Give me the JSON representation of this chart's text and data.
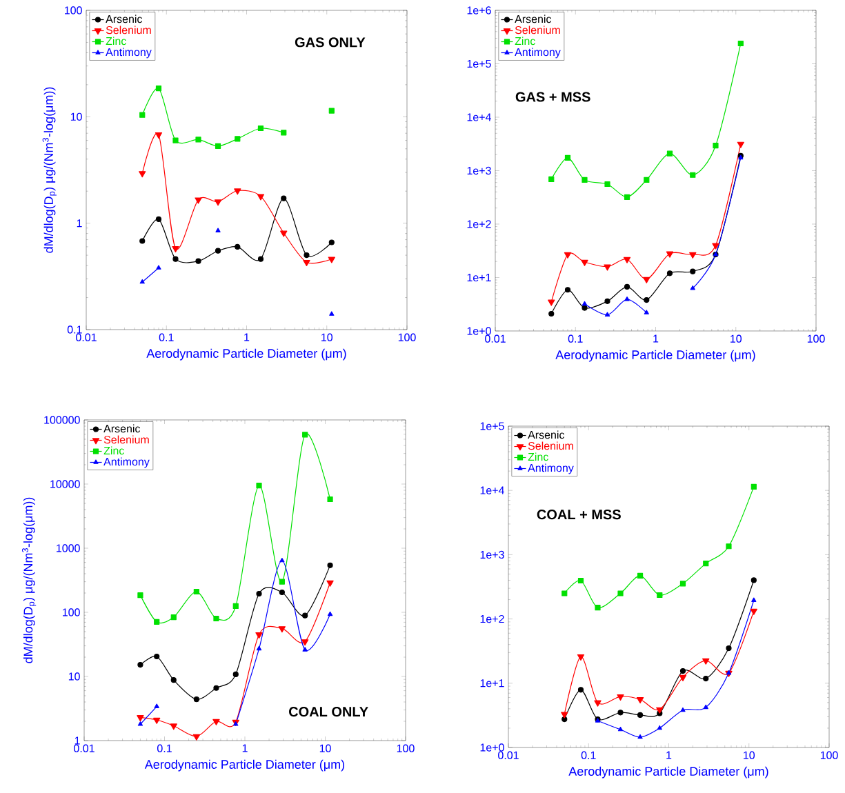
{
  "chart_data": [
    {
      "type": "line",
      "title": "GAS ONLY",
      "xlabel": "Aerodynamic Particle Diameter (μm)",
      "ylabel": "dM/dlog(D$_{p}$) μg/(Nm$^{3}$-log(μm))",
      "log": "xy",
      "legend": "top left",
      "xlim": [
        0.01,
        100
      ],
      "ylim": [
        0.1,
        100
      ],
      "xticks": [
        0.01,
        0.1,
        1,
        10,
        100
      ],
      "yticks": [
        0.1,
        1,
        10,
        100
      ],
      "x": [
        0.05,
        0.08,
        0.13,
        0.25,
        0.44,
        0.77,
        1.5,
        2.9,
        5.6,
        11.5
      ],
      "series": [
        {
          "name": "Arsenic",
          "color": "#000000",
          "marker": "circle",
          "values": [
            0.68,
            1.09,
            0.46,
            0.44,
            0.55,
            0.6,
            0.46,
            1.71,
            0.5,
            0.66
          ]
        },
        {
          "name": "Selenium",
          "color": "#ff0000",
          "marker": "triangle-down",
          "values": [
            2.94,
            6.8,
            0.58,
            1.66,
            1.59,
            2.02,
            1.79,
            0.81,
            0.43,
            0.46
          ]
        },
        {
          "name": "Zinc",
          "color": "#00e000",
          "marker": "square",
          "values": [
            10.4,
            18.5,
            6.0,
            6.1,
            5.3,
            6.2,
            7.8,
            7.1,
            null,
            11.4
          ]
        },
        {
          "name": "Antimony",
          "color": "#0000ff",
          "marker": "triangle",
          "values": [
            0.28,
            0.38,
            null,
            null,
            0.85,
            null,
            null,
            null,
            null,
            0.14
          ]
        }
      ]
    },
    {
      "type": "line",
      "title": "GAS + MSS",
      "xlabel": "Aerodynamic Particle Diameter (μm)",
      "log": "xy",
      "legend": "top left",
      "xlim": [
        0.01,
        100
      ],
      "ylim": [
        1,
        1000000
      ],
      "xticks": [
        0.01,
        0.1,
        1,
        10,
        100
      ],
      "yticks": [
        {
          "value": 1,
          "label": "1e+0"
        },
        {
          "value": 10,
          "label": "1e+1"
        },
        {
          "value": 100,
          "label": "1e+2"
        },
        {
          "value": 1000,
          "label": "1e+3"
        },
        {
          "value": 10000,
          "label": "1e+4"
        },
        {
          "value": 100000,
          "label": "1e+5"
        },
        {
          "value": 1000000,
          "label": "1e+6"
        }
      ],
      "x": [
        0.05,
        0.08,
        0.13,
        0.25,
        0.44,
        0.77,
        1.5,
        2.9,
        5.6,
        11.5
      ],
      "series": [
        {
          "name": "Arsenic",
          "color": "#000000",
          "marker": "circle",
          "values": [
            2.1,
            5.9,
            2.7,
            3.6,
            6.7,
            3.8,
            12,
            13,
            27,
            1900
          ]
        },
        {
          "name": "Selenium",
          "color": "#ff0000",
          "marker": "triangle-down",
          "values": [
            3.5,
            27,
            19.5,
            16,
            22,
            9.3,
            28,
            27,
            40,
            3150
          ]
        },
        {
          "name": "Zinc",
          "color": "#00e000",
          "marker": "square",
          "values": [
            690,
            1740,
            670,
            560,
            320,
            670,
            2090,
            830,
            2950,
            240000
          ]
        },
        {
          "name": "Antimony",
          "color": "#0000ff",
          "marker": "triangle",
          "values": [
            null,
            null,
            3.2,
            2.0,
            3.9,
            2.2,
            null,
            6.3,
            27,
            1740
          ]
        }
      ]
    },
    {
      "type": "line",
      "title": "COAL ONLY",
      "xlabel": "Aerodynamic Particle Diameter (μm)",
      "ylabel": "dM/dlog(D$_{p}$) μg/(Nm$^{3}$-log(μm))",
      "log": "xy",
      "legend": "top left",
      "xlim": [
        0.01,
        100
      ],
      "ylim": [
        1,
        100000
      ],
      "xticks": [
        0.01,
        0.1,
        1,
        10,
        100
      ],
      "yticks": [
        1,
        10,
        100,
        1000,
        10000,
        100000
      ],
      "x": [
        0.05,
        0.08,
        0.13,
        0.25,
        0.44,
        0.77,
        1.5,
        2.9,
        5.6,
        11.5
      ],
      "series": [
        {
          "name": "Arsenic",
          "color": "#000000",
          "marker": "circle",
          "values": [
            15.2,
            20.5,
            8.8,
            4.4,
            6.6,
            10.8,
            195,
            205,
            89,
            540
          ]
        },
        {
          "name": "Selenium",
          "color": "#ff0000",
          "marker": "triangle-down",
          "values": [
            2.3,
            2.1,
            1.7,
            1.16,
            2.0,
            1.95,
            45,
            56,
            35,
            290
          ]
        },
        {
          "name": "Zinc",
          "color": "#00e000",
          "marker": "square",
          "values": [
            185,
            71,
            84,
            210,
            80,
            125,
            9500,
            300,
            59000,
            5800
          ]
        },
        {
          "name": "Antimony",
          "color": "#0000ff",
          "marker": "triangle",
          "values": [
            1.8,
            3.4,
            null,
            null,
            null,
            1.8,
            27,
            640,
            26,
            93
          ]
        }
      ]
    },
    {
      "type": "line",
      "title": "COAL + MSS",
      "xlabel": "Aerodynamic Particle Diameter (μm)",
      "log": "xy",
      "legend": "top left",
      "xlim": [
        0.01,
        100
      ],
      "ylim": [
        1,
        100000
      ],
      "xticks": [
        0.01,
        0.1,
        1,
        10,
        100
      ],
      "yticks": [
        {
          "value": 1,
          "label": "1e+0"
        },
        {
          "value": 10,
          "label": "1e+1"
        },
        {
          "value": 100,
          "label": "1e+2"
        },
        {
          "value": 1000,
          "label": "1e+3"
        },
        {
          "value": 10000,
          "label": "1e+4"
        },
        {
          "value": 100000,
          "label": "1e+5"
        }
      ],
      "x": [
        0.05,
        0.08,
        0.13,
        0.25,
        0.44,
        0.77,
        1.5,
        2.9,
        5.6,
        11.5
      ],
      "series": [
        {
          "name": "Arsenic",
          "color": "#000000",
          "marker": "circle",
          "values": [
            2.75,
            7.9,
            2.75,
            3.5,
            3.2,
            3.4,
            15.5,
            11.8,
            35,
            400
          ]
        },
        {
          "name": "Selenium",
          "color": "#ff0000",
          "marker": "triangle-down",
          "values": [
            3.3,
            26,
            5,
            6.2,
            5.6,
            3.9,
            12.4,
            22.5,
            14.4,
            133
          ]
        },
        {
          "name": "Zinc",
          "color": "#00e000",
          "marker": "square",
          "values": [
            250,
            395,
            150,
            250,
            470,
            235,
            355,
            730,
            1350,
            11400
          ]
        },
        {
          "name": "Antimony",
          "color": "#0000ff",
          "marker": "triangle",
          "values": [
            null,
            null,
            2.6,
            1.9,
            1.45,
            2.0,
            3.8,
            4.2,
            14.4,
            195
          ]
        }
      ]
    }
  ]
}
